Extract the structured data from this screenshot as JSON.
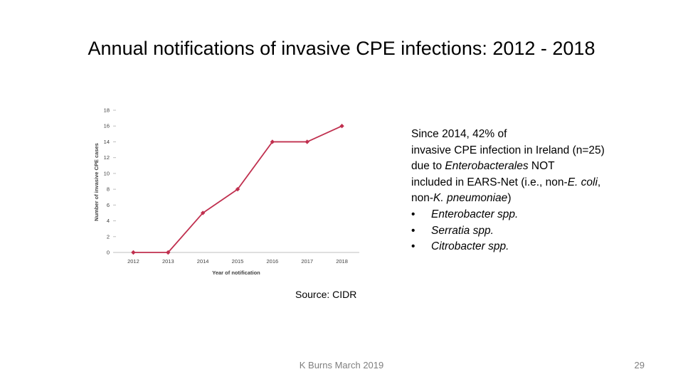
{
  "slide": {
    "title": "Annual notifications of invasive CPE infections: 2012 - 2018",
    "source": "Source: CIDR",
    "footer": "K Burns March 2019",
    "page_number": "29"
  },
  "side_text": {
    "line1": "Since 2014, 42% of",
    "line2": "invasive CPE infection in Ireland (n=25)",
    "line3_a": "due to ",
    "line3_em": "Enterobacterales",
    "line3_b": " NOT",
    "line4_a": "included in EARS-Net (i.e., non-",
    "line4_em": "E. coli",
    "line4_b": ",",
    "line5_a": "non-",
    "line5_em": "K. pneumoniae",
    "line5_b": ")",
    "bullet_symbol": "•",
    "bullets": [
      "Enterobacter spp.",
      "Serratia spp.",
      "Citrobacter spp."
    ]
  },
  "chart_data": {
    "type": "line",
    "title": "",
    "xlabel": "Year of notification",
    "ylabel": "Number of invasive CPE cases",
    "categories": [
      "2012",
      "2013",
      "2014",
      "2015",
      "2016",
      "2017",
      "2018"
    ],
    "series": [
      {
        "name": "Invasive CPE cases",
        "values": [
          0,
          0,
          5,
          8,
          14,
          14,
          16
        ]
      }
    ],
    "ylim": [
      0,
      18
    ],
    "yticks": [
      0,
      2,
      4,
      6,
      8,
      10,
      12,
      14,
      16,
      18
    ],
    "grid": false,
    "line_color": "#c0304f"
  }
}
